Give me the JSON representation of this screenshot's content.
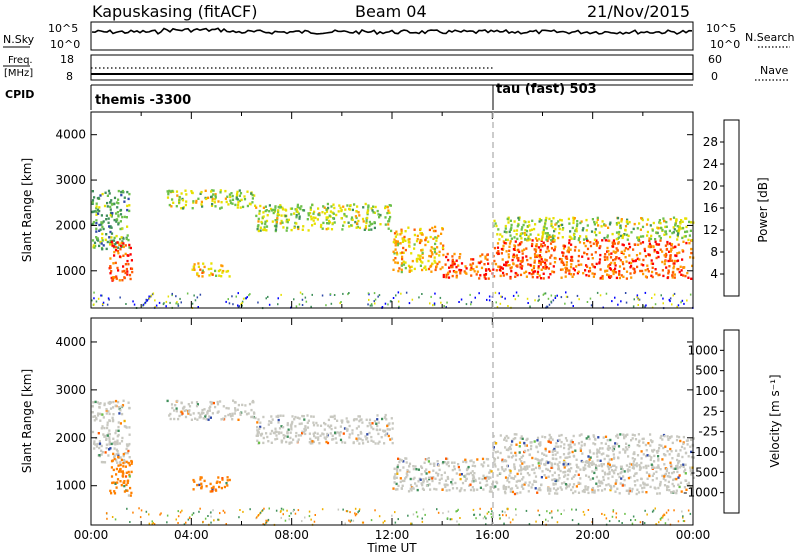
{
  "header": {
    "station": "Kapuskasing (fitACF)",
    "beam": "Beam 04",
    "date": "21/Nov/2015"
  },
  "strip_panels": {
    "nsky_label": "N.Sky",
    "nsky_ticks": [
      "10^5",
      "10^0"
    ],
    "nsearch_label": "N.Search",
    "nsearch_ticks": [
      "10^5",
      "10^0"
    ],
    "freq_label": "Freq.",
    "freq_unit": "[MHz]",
    "freq_ticks": [
      "18",
      "8"
    ],
    "nave_label": "Nave",
    "nave_ticks": [
      "60",
      "0"
    ],
    "cpid_label": "CPID",
    "cpid_segments": [
      {
        "name": "themis -3300",
        "start_h": 0,
        "end_h": 16
      },
      {
        "name": "tau (fast) 503",
        "start_h": 16,
        "end_h": 24
      }
    ]
  },
  "chart_data": [
    {
      "type": "heatmap",
      "panel": "power",
      "ylabel": "Slant Range [km]",
      "xlabel": "Time UT",
      "xlim": [
        0,
        24
      ],
      "ylim": [
        180,
        4500
      ],
      "x_ticks": [
        "00:00",
        "04:00",
        "08:00",
        "12:00",
        "16:00",
        "20:00",
        "00:00"
      ],
      "y_ticks": [
        1000,
        2000,
        3000,
        4000
      ],
      "colorbar": {
        "label": "Power [dB]",
        "ticks": [
          4,
          8,
          12,
          16,
          20,
          24,
          28
        ],
        "colors": [
          "#0000ff",
          "#2f49a8",
          "#3f8f5a",
          "#6cc04a",
          "#e6e000",
          "#ff9a00",
          "#ff5a00",
          "#ff0000"
        ]
      },
      "echo_regions": [
        {
          "t0": 0.0,
          "t1": 1.5,
          "r0": 1500,
          "r1": 2800,
          "value": 12
        },
        {
          "t0": 0.7,
          "t1": 1.6,
          "r0": 800,
          "r1": 1700,
          "value": 26
        },
        {
          "t0": 4.0,
          "t1": 5.5,
          "r0": 900,
          "r1": 1200,
          "value": 20
        },
        {
          "t0": 3.0,
          "t1": 6.5,
          "r0": 2400,
          "r1": 2800,
          "value": 16
        },
        {
          "t0": 6.5,
          "t1": 12.0,
          "r0": 1900,
          "r1": 2500,
          "value": 16
        },
        {
          "t0": 12.0,
          "t1": 14.0,
          "r0": 1000,
          "r1": 2000,
          "value": 20
        },
        {
          "t0": 14.0,
          "t1": 16.0,
          "r0": 850,
          "r1": 1400,
          "value": 26
        },
        {
          "t0": 16.0,
          "t1": 24.0,
          "r0": 850,
          "r1": 1700,
          "value": 26
        },
        {
          "t0": 16.0,
          "t1": 24.0,
          "r0": 1700,
          "r1": 2200,
          "value": 16
        }
      ]
    },
    {
      "type": "heatmap",
      "panel": "velocity",
      "ylabel": "Slant Range [km]",
      "xlabel": "Time UT",
      "xlim": [
        0,
        24
      ],
      "ylim": [
        180,
        4500
      ],
      "x_ticks": [
        "00:00",
        "04:00",
        "08:00",
        "12:00",
        "16:00",
        "20:00",
        "00:00"
      ],
      "y_ticks": [
        1000,
        2000,
        3000,
        4000
      ],
      "colorbar": {
        "label": "Velocity [m s⁻¹]",
        "ticks": [
          1000,
          500,
          100,
          25,
          -25,
          -100,
          -500,
          -1000
        ],
        "colors": [
          "#0000ff",
          "#2f49a8",
          "#3f8f5a",
          "#6cc04a",
          "#c8c8c0",
          "#f0b000",
          "#ff8000",
          "#ff5a00",
          "#ff0000"
        ]
      },
      "echo_regions": [
        {
          "t0": 0.0,
          "t1": 1.5,
          "r0": 1500,
          "r1": 2800,
          "value": 0
        },
        {
          "t0": 0.7,
          "t1": 1.6,
          "r0": 800,
          "r1": 1700,
          "value": -300
        },
        {
          "t0": 4.0,
          "t1": 5.5,
          "r0": 900,
          "r1": 1200,
          "value": -150
        },
        {
          "t0": 3.0,
          "t1": 6.5,
          "r0": 2400,
          "r1": 2800,
          "value": 0
        },
        {
          "t0": 6.5,
          "t1": 12.0,
          "r0": 1900,
          "r1": 2500,
          "value": 0
        },
        {
          "t0": 12.0,
          "t1": 16.0,
          "r0": 900,
          "r1": 1600,
          "value": 0
        },
        {
          "t0": 16.0,
          "t1": 24.0,
          "r0": 850,
          "r1": 2100,
          "value": 0
        }
      ]
    }
  ]
}
